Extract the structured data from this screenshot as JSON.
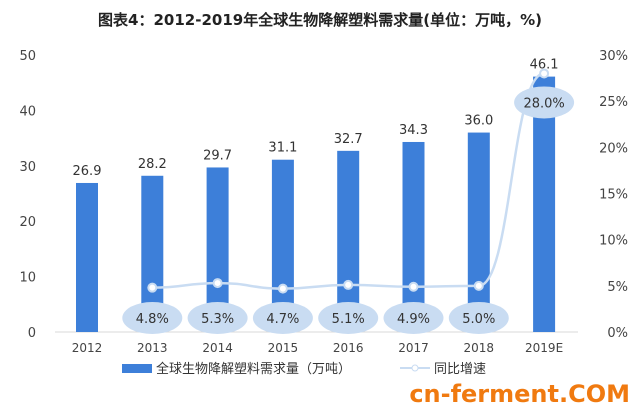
{
  "chart_data": {
    "type": "bar",
    "title": "图表4：2012-2019年全球生物降解塑料需求量(单位：万吨，%)",
    "categories": [
      "2012",
      "2013",
      "2014",
      "2015",
      "2016",
      "2017",
      "2018",
      "2019E"
    ],
    "series": [
      {
        "name": "全球生物降解塑料需求量（万吨）",
        "type": "bar",
        "axis": "left",
        "values": [
          26.9,
          28.2,
          29.7,
          31.1,
          32.7,
          34.3,
          36.0,
          46.1
        ],
        "labels": [
          "26.9",
          "28.2",
          "29.7",
          "31.1",
          "32.7",
          "34.3",
          "36.0",
          "46.1"
        ],
        "color": "#3d7fd9"
      },
      {
        "name": "同比增速",
        "type": "line",
        "axis": "right",
        "values": [
          null,
          4.8,
          5.3,
          4.7,
          5.1,
          4.9,
          5.0,
          28.0
        ],
        "labels": [
          "",
          "4.8%",
          "5.3%",
          "4.7%",
          "5.1%",
          "4.9%",
          "5.0%",
          "28.0%"
        ],
        "color": "#c9dcf2"
      }
    ],
    "left_axis": {
      "ylim": [
        0,
        50
      ],
      "ticks": [
        "0",
        "10",
        "20",
        "30",
        "40",
        "50"
      ]
    },
    "right_axis": {
      "ylim": [
        0,
        30
      ],
      "ticks": [
        "0%",
        "5%",
        "10%",
        "15%",
        "20%",
        "25%",
        "30%"
      ]
    },
    "grid": false,
    "legend": "bottom"
  },
  "watermark": "cn-ferment.COM"
}
